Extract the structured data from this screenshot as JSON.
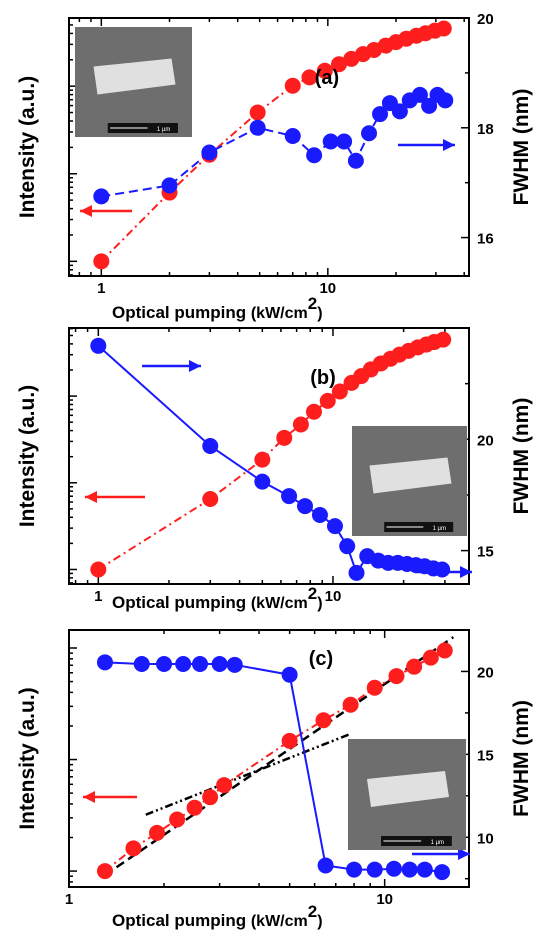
{
  "colors": {
    "intensity": "#ff1e1e",
    "fwhm": "#1a1aff",
    "fit": "#000000",
    "sem_bg": "#6e6e6e",
    "sem_rod": "#e6e6e6"
  },
  "chart_data": [
    {
      "type": "scatter",
      "panel_label": "(a)",
      "xlabel": "Optical pumping",
      "xlabel_unit": "(kW/cm",
      "xlabel_sup": "2",
      "xlabel_close": ")",
      "ylabel_left": "Intensity (a.u.)",
      "ylabel_right": "FWHM (nm)",
      "x_scale": "log",
      "xlim": [
        0.72,
        42
      ],
      "x_ticks": [
        {
          "value": 1,
          "label": "1"
        },
        {
          "value": 10,
          "label": "10"
        }
      ],
      "left_axis": {
        "scale": "log",
        "ylim": [
          0.68,
          600
        ]
      },
      "right_axis": {
        "ylim": [
          15.3,
          20
        ],
        "ticks": [
          {
            "value": 16,
            "label": "16"
          },
          {
            "value": 18,
            "label": "18"
          },
          {
            "value": 20,
            "label": "20"
          }
        ]
      },
      "inset_scale_text": "1 µm",
      "series": [
        {
          "axis": "left",
          "color": "intensity",
          "connect": "dashdot",
          "x": [
            1.0,
            2.0,
            3.0,
            4.9,
            7.0,
            8.3,
            9.7,
            11.2,
            12.7,
            14.3,
            16.0,
            18.0,
            20.0,
            22.2,
            24.6,
            27.0,
            29.7,
            32.5
          ],
          "y": [
            1.0,
            6.1,
            16.5,
            50,
            101,
            126,
            150,
            178,
            205,
            232,
            259,
            290,
            318,
            348,
            376,
            402,
            430,
            455
          ]
        },
        {
          "axis": "right",
          "color": "fwhm",
          "connect": "dashed",
          "x": [
            1.0,
            2.0,
            3.0,
            4.9,
            7.0,
            8.7,
            10.3,
            11.8,
            13.3,
            15.2,
            17.0,
            18.8,
            20.8,
            23.0,
            25.5,
            28.0,
            30.5,
            33.0
          ],
          "y": [
            16.75,
            16.95,
            17.55,
            18.0,
            17.85,
            17.5,
            17.75,
            17.75,
            17.4,
            17.9,
            18.25,
            18.45,
            18.3,
            18.5,
            18.6,
            18.4,
            18.6,
            18.5
          ]
        }
      ],
      "arrows": [
        {
          "direction": "left",
          "color": "intensity"
        },
        {
          "direction": "right",
          "color": "fwhm"
        }
      ]
    },
    {
      "type": "scatter",
      "panel_label": "(b)",
      "xlabel": "Optical pumping",
      "xlabel_unit": "(kW/cm",
      "xlabel_sup": "2",
      "xlabel_close": ")",
      "ylabel_left": "Intensity (a.u.)",
      "ylabel_right": "FWHM (nm)",
      "x_scale": "log",
      "xlim": [
        0.75,
        38
      ],
      "x_ticks": [
        {
          "value": 1,
          "label": "1"
        },
        {
          "value": 10,
          "label": "10"
        }
      ],
      "left_axis": {
        "scale": "log",
        "ylim": [
          0.68,
          610
        ]
      },
      "right_axis": {
        "ylim": [
          13.5,
          25
        ],
        "ticks": [
          {
            "value": 15,
            "label": "15"
          },
          {
            "value": 20,
            "label": "20"
          }
        ]
      },
      "inset_scale_text": "1 µm",
      "series": [
        {
          "axis": "left",
          "color": "intensity",
          "connect": "dashdot",
          "x": [
            1.0,
            3.0,
            5.0,
            6.2,
            7.3,
            8.3,
            9.5,
            10.7,
            12.0,
            13.2,
            14.5,
            16.0,
            17.6,
            19.2,
            21.0,
            23.0,
            25.0,
            27.0,
            29.5
          ],
          "y": [
            1.0,
            6.5,
            18.5,
            33,
            47,
            66,
            88,
            113,
            142,
            170,
            203,
            238,
            270,
            301,
            332,
            365,
            393,
            420,
            448
          ]
        },
        {
          "axis": "right",
          "color": "fwhm",
          "connect": "solid",
          "x": [
            1.0,
            3.0,
            5.0,
            6.5,
            7.6,
            8.8,
            10.2,
            11.5,
            12.6,
            14.0,
            15.6,
            17.2,
            18.9,
            20.7,
            22.6,
            24.6,
            26.8,
            29.2
          ],
          "y": [
            24.2,
            19.7,
            18.1,
            17.45,
            17.0,
            16.6,
            16.1,
            15.2,
            14.0,
            14.75,
            14.55,
            14.45,
            14.45,
            14.4,
            14.35,
            14.3,
            14.2,
            14.15
          ]
        }
      ],
      "arrows": [
        {
          "direction": "left",
          "color": "intensity"
        },
        {
          "direction": "right",
          "color": "fwhm"
        },
        {
          "direction": "right",
          "color": "fwhm"
        }
      ]
    },
    {
      "type": "scatter",
      "panel_label": "(c)",
      "xlabel": "Optical pumping",
      "xlabel_unit": "(kW/cm",
      "xlabel_sup": "2",
      "xlabel_close": ")",
      "ylabel_left": "Intensity (a.u.)",
      "ylabel_right": "FWHM (nm)",
      "x_scale": "log",
      "xlim": [
        1.0,
        18.5
      ],
      "x_ticks": [
        {
          "value": 1,
          "label": "1"
        },
        {
          "value": 10,
          "label": "10"
        }
      ],
      "left_axis": {
        "scale": "log",
        "ylim": [
          0.72,
          145
        ]
      },
      "right_axis": {
        "ylim": [
          7,
          22.5
        ],
        "ticks": [
          {
            "value": 10,
            "label": "10"
          },
          {
            "value": 15,
            "label": "15"
          },
          {
            "value": 20,
            "label": "20"
          }
        ]
      },
      "inset_scale_text": "1 µm",
      "series": [
        {
          "axis": "left",
          "color": "intensity",
          "connect": "dashdot",
          "x": [
            1.3,
            1.6,
            1.9,
            2.2,
            2.5,
            2.8,
            3.1,
            5.0,
            6.4,
            7.8,
            9.3,
            10.9,
            12.4,
            14.0,
            15.5
          ],
          "y": [
            1.0,
            1.6,
            2.2,
            2.9,
            3.7,
            4.6,
            5.9,
            14.7,
            22.5,
            31,
            44,
            56,
            68,
            82,
            95
          ]
        },
        {
          "axis": "right",
          "color": "fwhm",
          "connect": "solid",
          "x": [
            1.3,
            1.7,
            2.0,
            2.3,
            2.6,
            3.0,
            3.35,
            5.0,
            6.5,
            8.0,
            9.3,
            10.7,
            12.0,
            13.4,
            15.2
          ],
          "y": [
            20.55,
            20.45,
            20.45,
            20.45,
            20.45,
            20.45,
            20.4,
            19.8,
            8.3,
            8.05,
            8.05,
            8.1,
            8.05,
            8.05,
            7.9
          ]
        }
      ],
      "fit_lines": [
        {
          "style": "dashed",
          "x": [
            1.3,
            16.5
          ],
          "y": [
            0.92,
            125
          ]
        },
        {
          "style": "dashdotdot",
          "x": [
            1.75,
            7.8
          ],
          "y": [
            3.2,
            17
          ]
        }
      ],
      "arrows": [
        {
          "direction": "left",
          "color": "intensity"
        },
        {
          "direction": "right",
          "color": "fwhm"
        }
      ]
    }
  ]
}
